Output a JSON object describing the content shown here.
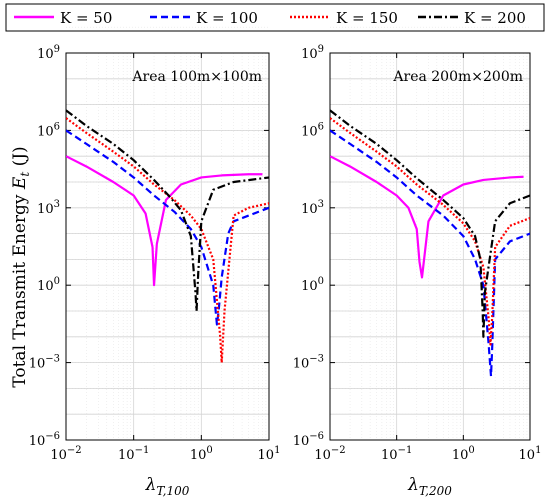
{
  "chart_data": [
    {
      "type": "line",
      "panel": "left",
      "title": "",
      "annotation": "Area 100m×100m",
      "xlabel": "λT,100",
      "xlabel_main": "λ",
      "xlabel_sub": "T,100",
      "ylabel": "Total Transmit Energy Et (J)",
      "xscale": "log",
      "yscale": "log",
      "xlim": [
        0.01,
        10
      ],
      "ylim": [
        1e-06,
        1000000000.0
      ],
      "grid": true,
      "legend": "top, outside",
      "series": [
        {
          "name": "K = 50",
          "x": [
            0.01,
            0.02,
            0.05,
            0.1,
            0.15,
            0.19,
            0.2,
            0.22,
            0.3,
            0.5,
            1,
            2,
            5,
            8
          ],
          "y": [
            100000,
            40000,
            10000,
            3000,
            600,
            30,
            1,
            40,
            2000,
            8000,
            15000,
            18000,
            20000,
            20000
          ]
        },
        {
          "name": "K = 100",
          "x": [
            0.01,
            0.02,
            0.05,
            0.1,
            0.2,
            0.4,
            0.7,
            1.0,
            1.5,
            1.7,
            1.8,
            2,
            2.5,
            3,
            5,
            10
          ],
          "y": [
            1000000,
            300000,
            60000,
            15000,
            3000,
            700,
            150,
            30,
            1,
            0.03,
            0.1,
            2,
            100,
            300,
            500,
            1000
          ]
        },
        {
          "name": "K = 150",
          "x": [
            0.01,
            0.02,
            0.05,
            0.1,
            0.2,
            0.4,
            0.7,
            1.0,
            1.5,
            1.9,
            2.0,
            2.2,
            3,
            5,
            10
          ],
          "y": [
            3000000,
            800000,
            150000,
            40000,
            8000,
            2000,
            500,
            150,
            10,
            0.01,
            0.001,
            0.1,
            500,
            1000,
            1500
          ]
        },
        {
          "name": "K = 200",
          "x": [
            0.01,
            0.02,
            0.05,
            0.1,
            0.2,
            0.35,
            0.5,
            0.7,
            0.82,
            0.85,
            0.9,
            1.0,
            1.5,
            3,
            10
          ],
          "y": [
            6000000,
            1500000,
            300000,
            70000,
            12000,
            2500,
            800,
            80,
            0.5,
            0.1,
            3,
            300,
            5000,
            10000,
            15000
          ]
        }
      ]
    },
    {
      "type": "line",
      "panel": "right",
      "title": "",
      "annotation": "Area 200m×200m",
      "xlabel": "λT,200",
      "xlabel_main": "λ",
      "xlabel_sub": "T,200",
      "ylabel": "",
      "xscale": "log",
      "yscale": "log",
      "xlim": [
        0.01,
        10
      ],
      "ylim": [
        1e-06,
        1000000000.0
      ],
      "grid": true,
      "series": [
        {
          "name": "K = 50",
          "x": [
            0.01,
            0.02,
            0.05,
            0.1,
            0.15,
            0.2,
            0.22,
            0.24,
            0.3,
            0.5,
            1,
            2,
            5,
            8
          ],
          "y": [
            100000,
            40000,
            10000,
            3000,
            1000,
            150,
            8,
            2,
            300,
            3000,
            8000,
            12000,
            15000,
            16000
          ]
        },
        {
          "name": "K = 100",
          "x": [
            0.01,
            0.02,
            0.05,
            0.1,
            0.2,
            0.5,
            1.0,
            1.5,
            2.0,
            2.4,
            2.6,
            2.7,
            3,
            5,
            10
          ],
          "y": [
            1000000,
            300000,
            60000,
            15000,
            3000,
            500,
            80,
            10,
            1,
            0.005,
            0.0003,
            0.003,
            10,
            50,
            100
          ]
        },
        {
          "name": "K = 150",
          "x": [
            0.01,
            0.02,
            0.05,
            0.1,
            0.2,
            0.5,
            1.0,
            1.5,
            2.0,
            2.4,
            2.55,
            2.7,
            3,
            5,
            10
          ],
          "y": [
            3000000,
            800000,
            150000,
            40000,
            8000,
            1300,
            250,
            50,
            5,
            0.05,
            0.005,
            0.05,
            30,
            200,
            400
          ]
        },
        {
          "name": "K = 200",
          "x": [
            0.01,
            0.02,
            0.05,
            0.1,
            0.2,
            0.5,
            1.0,
            1.5,
            1.8,
            1.95,
            2.0,
            2.1,
            3,
            5,
            10
          ],
          "y": [
            6000000,
            1500000,
            300000,
            70000,
            14000,
            2000,
            400,
            80,
            10,
            0.1,
            0.01,
            0.5,
            300,
            1500,
            3000
          ]
        }
      ]
    }
  ],
  "legend": {
    "entries": [
      {
        "label": "K = 50",
        "color": "#ff00ff",
        "dash": "solid"
      },
      {
        "label": "K = 100",
        "color": "#0000ff",
        "dash": "dashed"
      },
      {
        "label": "K = 150",
        "color": "#ff0000",
        "dash": "dotted"
      },
      {
        "label": "K = 200",
        "color": "#000000",
        "dash": "dashdot"
      }
    ]
  },
  "ticks": {
    "x": [
      {
        "value": 0.01,
        "base": "10",
        "exp": "−2"
      },
      {
        "value": 0.1,
        "base": "10",
        "exp": "−1"
      },
      {
        "value": 1,
        "base": "10",
        "exp": "0"
      },
      {
        "value": 10,
        "base": "10",
        "exp": "1"
      }
    ],
    "y": [
      {
        "value": 1000000000.0,
        "base": "10",
        "exp": "9"
      },
      {
        "value": 1000000.0,
        "base": "10",
        "exp": "6"
      },
      {
        "value": 1000.0,
        "base": "10",
        "exp": "3"
      },
      {
        "value": 1,
        "base": "10",
        "exp": "0"
      },
      {
        "value": 0.001,
        "base": "10",
        "exp": "−3"
      },
      {
        "value": 1e-06,
        "base": "10",
        "exp": "−6"
      }
    ]
  },
  "ylabel_main": "Total Transmit Energy ",
  "ylabel_sym": "E",
  "ylabel_sub": "t",
  "ylabel_unit": " (J)"
}
